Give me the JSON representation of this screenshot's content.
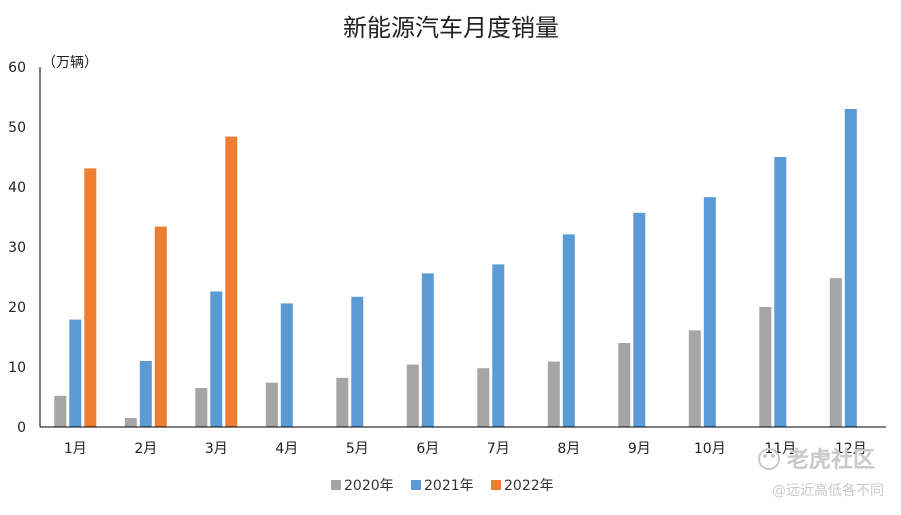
{
  "chart_data": {
    "type": "bar",
    "title": "新能源汽车月度销量",
    "unit_label": "（万辆）",
    "categories": [
      "1月",
      "2月",
      "3月",
      "4月",
      "5月",
      "6月",
      "7月",
      "8月",
      "9月",
      "10月",
      "11月",
      "12月"
    ],
    "series": [
      {
        "name": "2020年",
        "color": "#a5a5a5",
        "values": [
          5.2,
          1.5,
          6.5,
          7.4,
          8.2,
          10.4,
          9.8,
          10.9,
          14.0,
          16.1,
          20.0,
          24.8
        ]
      },
      {
        "name": "2021年",
        "color": "#5b9bd5",
        "values": [
          17.9,
          11.0,
          22.6,
          20.6,
          21.7,
          25.6,
          27.1,
          32.1,
          35.7,
          38.3,
          45.0,
          53.0
        ]
      },
      {
        "name": "2022年",
        "color": "#ed7d31",
        "values": [
          43.1,
          33.4,
          48.4,
          null,
          null,
          null,
          null,
          null,
          null,
          null,
          null,
          null
        ]
      }
    ],
    "yticks": [
      0,
      10,
      20,
      30,
      40,
      50,
      60
    ],
    "ylim": [
      0,
      60
    ],
    "grid": false,
    "legend": "bottom-center"
  },
  "watermark": {
    "line1": "老虎社区",
    "line2": "@远近高低各不同"
  }
}
